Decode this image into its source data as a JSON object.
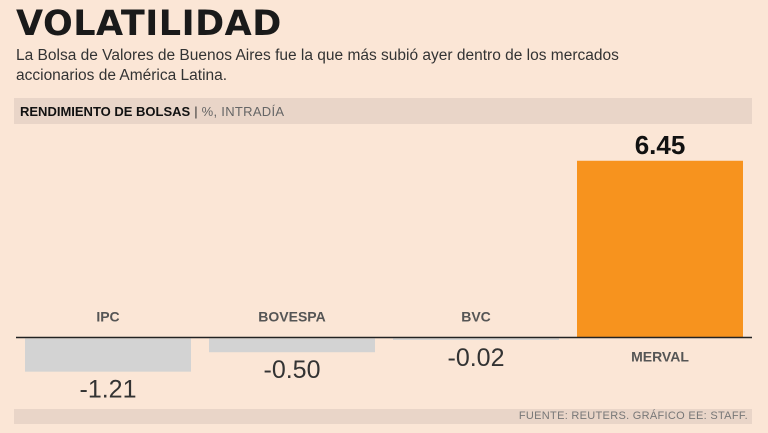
{
  "header": {
    "title": "VOLATILIDAD",
    "subtitle": "La Bolsa de Valores de Buenos Aires fue la que más subió ayer dentro de los mercados accionarios de América Latina."
  },
  "band": {
    "heading": "RENDIMIENTO DE BOLSAS",
    "separator": "|",
    "unit": "%, INTRADÍA"
  },
  "footer": {
    "source": "FUENTE: REUTERS. GRÁFICO EE: STAFF."
  },
  "colors": {
    "negative_bar": "#d3d3d3",
    "positive_bar": "#f7931e",
    "background": "#fbe6d6"
  },
  "chart_data": {
    "type": "bar",
    "title": "RENDIMIENTO DE BOLSAS",
    "ylabel": "%, INTRADÍA",
    "categories": [
      "IPC",
      "BOVESPA",
      "BVC",
      "MERVAL"
    ],
    "values": [
      -1.21,
      -0.5,
      -0.02,
      6.45
    ],
    "value_labels": [
      "-1.21",
      "-0.50",
      "-0.02",
      "6.45"
    ],
    "ylim": [
      -1.5,
      7
    ]
  }
}
